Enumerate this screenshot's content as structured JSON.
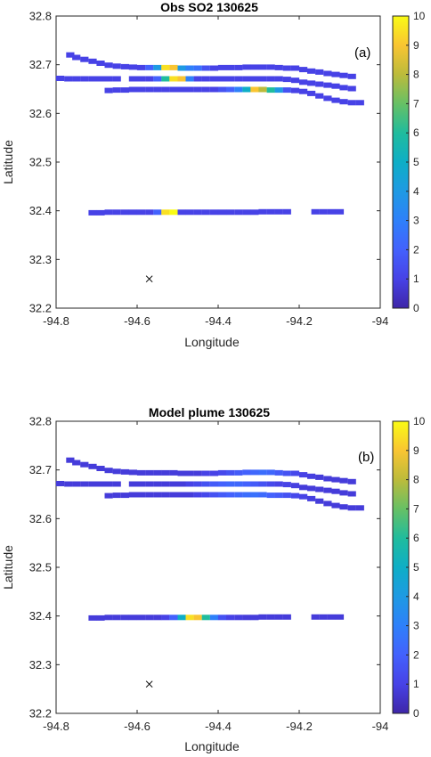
{
  "chart_data": [
    {
      "type": "scatter",
      "title": "Obs SO2 130625",
      "panel_label": "(a)",
      "xlabel": "Longitude",
      "ylabel": "Latitude",
      "xlim": [
        -94.8,
        -94.0
      ],
      "ylim": [
        32.2,
        32.8
      ],
      "xticks": [
        "-94.8",
        "-94.6",
        "-94.4",
        "-94.2",
        "-94"
      ],
      "yticks": [
        "32.2",
        "32.3",
        "32.4",
        "32.5",
        "32.6",
        "32.7",
        "32.8"
      ],
      "colorbar": {
        "min": 0,
        "max": 10,
        "ticks": [
          "0",
          "1",
          "2",
          "3",
          "4",
          "5",
          "6",
          "7",
          "8",
          "9",
          "10"
        ],
        "colormap": "parula"
      },
      "source_marker": {
        "x": -94.57,
        "y": 32.26,
        "symbol": "x"
      },
      "tracks": [
        {
          "lon": [
            -94.765,
            -94.75,
            -94.73,
            -94.71,
            -94.69,
            -94.67,
            -94.65,
            -94.63,
            -94.61,
            -94.59,
            -94.57,
            -94.55,
            -94.53,
            -94.51,
            -94.49,
            -94.47,
            -94.45,
            -94.43,
            -94.41,
            -94.39,
            -94.37,
            -94.35,
            -94.33,
            -94.31,
            -94.29,
            -94.27,
            -94.25,
            -94.23,
            -94.21,
            -94.19,
            -94.17,
            -94.15,
            -94.13,
            -94.11,
            -94.09,
            -94.07
          ],
          "lat": [
            32.72,
            32.715,
            32.711,
            32.707,
            32.703,
            32.699,
            32.697,
            32.696,
            32.695,
            32.694,
            32.694,
            32.694,
            32.694,
            32.694,
            32.693,
            32.693,
            32.693,
            32.693,
            32.693,
            32.694,
            32.694,
            32.694,
            32.695,
            32.695,
            32.695,
            32.695,
            32.694,
            32.693,
            32.693,
            32.69,
            32.687,
            32.685,
            32.682,
            32.68,
            32.678,
            32.676
          ],
          "val": [
            1,
            1,
            1,
            1,
            1,
            1,
            1,
            1,
            1,
            1,
            2,
            4,
            9.5,
            9,
            4,
            3,
            2.5,
            1.5,
            1,
            1,
            1,
            1,
            1,
            1,
            1,
            1,
            1,
            1,
            1,
            1,
            1,
            1,
            1,
            1,
            1,
            1
          ]
        },
        {
          "lon": [
            -94.79,
            -94.77,
            -94.75,
            -94.73,
            -94.71,
            -94.69,
            -94.67,
            -94.65,
            -94.63,
            -94.61,
            -94.59,
            -94.57,
            -94.55,
            -94.53,
            -94.51,
            -94.49,
            -94.47,
            -94.45,
            -94.43,
            -94.41,
            -94.39,
            -94.37,
            -94.35,
            -94.33,
            -94.31,
            -94.29,
            -94.27,
            -94.25,
            -94.23,
            -94.21,
            -94.19,
            -94.17,
            -94.15,
            -94.13,
            -94.11,
            -94.09,
            -94.07
          ],
          "lat": [
            32.672,
            32.671,
            32.671,
            32.671,
            32.671,
            32.671,
            32.671,
            32.671,
            null,
            32.671,
            32.671,
            32.671,
            32.671,
            32.671,
            32.671,
            32.671,
            32.671,
            32.671,
            32.671,
            32.671,
            32.671,
            32.671,
            32.671,
            32.671,
            32.671,
            32.671,
            32.671,
            32.671,
            32.67,
            32.668,
            32.664,
            32.662,
            32.66,
            32.658,
            32.656,
            32.653,
            32.651
          ],
          "val": [
            1,
            1,
            1,
            1,
            1,
            1,
            1,
            1,
            null,
            1,
            1,
            1,
            2,
            6,
            9.5,
            9,
            3,
            1,
            1,
            1,
            1,
            1,
            1,
            1,
            1,
            1,
            1,
            1,
            1,
            1,
            1,
            1,
            1,
            1,
            1,
            1,
            1
          ]
        },
        {
          "lon": [
            -94.67,
            -94.65,
            -94.63,
            -94.61,
            -94.59,
            -94.57,
            -94.55,
            -94.53,
            -94.51,
            -94.49,
            -94.47,
            -94.45,
            -94.43,
            -94.41,
            -94.39,
            -94.37,
            -94.35,
            -94.33,
            -94.31,
            -94.29,
            -94.27,
            -94.25,
            -94.23,
            -94.21,
            -94.19,
            -94.17,
            -94.15,
            -94.13,
            -94.11,
            -94.09,
            -94.07,
            -94.05
          ],
          "lat": [
            32.647,
            32.648,
            32.648,
            32.649,
            32.649,
            32.649,
            32.649,
            32.649,
            32.649,
            32.649,
            32.649,
            32.649,
            32.649,
            32.649,
            32.649,
            32.649,
            32.649,
            32.649,
            32.649,
            32.649,
            32.648,
            32.648,
            32.648,
            32.647,
            32.645,
            32.641,
            32.636,
            32.631,
            32.627,
            32.624,
            32.622,
            32.622
          ],
          "val": [
            1,
            1,
            1,
            1,
            1,
            1,
            1,
            1,
            1,
            1,
            1,
            1,
            1,
            1,
            1.5,
            2,
            3,
            5,
            9,
            8,
            6,
            4,
            1.5,
            1,
            1,
            1,
            1,
            1,
            1,
            1,
            1,
            1
          ]
        },
        {
          "lon": [
            -94.71,
            -94.69,
            -94.67,
            -94.65,
            -94.63,
            -94.61,
            -94.59,
            -94.57,
            -94.55,
            -94.53,
            -94.51,
            -94.49,
            -94.47,
            -94.45,
            -94.43,
            -94.41,
            -94.39,
            -94.37,
            -94.35,
            -94.33,
            -94.31,
            -94.29,
            -94.27,
            -94.25,
            -94.23,
            -94.16,
            -94.14,
            -94.12,
            -94.1
          ],
          "lat": [
            32.396,
            32.396,
            32.397,
            32.397,
            32.397,
            32.397,
            32.397,
            32.397,
            32.397,
            32.397,
            32.397,
            32.397,
            32.397,
            32.397,
            32.397,
            32.397,
            32.397,
            32.397,
            32.397,
            32.397,
            32.397,
            32.398,
            32.398,
            32.398,
            32.398,
            32.398,
            32.398,
            32.398,
            32.398
          ],
          "val": [
            1,
            1,
            1,
            1,
            1,
            1,
            1,
            1,
            2,
            9.5,
            10,
            1,
            1,
            1,
            1,
            1,
            1,
            1,
            1,
            1,
            1,
            1,
            1,
            1,
            1,
            1,
            1,
            1,
            1
          ]
        }
      ]
    },
    {
      "type": "scatter",
      "title": "Model plume 130625",
      "panel_label": "(b)",
      "xlabel": "Longitude",
      "ylabel": "Latitude",
      "xlim": [
        -94.8,
        -94.0
      ],
      "ylim": [
        32.2,
        32.8
      ],
      "xticks": [
        "-94.8",
        "-94.6",
        "-94.4",
        "-94.2",
        "-94"
      ],
      "yticks": [
        "32.2",
        "32.3",
        "32.4",
        "32.5",
        "32.6",
        "32.7",
        "32.8"
      ],
      "colorbar": {
        "min": 0,
        "max": 10,
        "ticks": [
          "0",
          "1",
          "2",
          "3",
          "4",
          "5",
          "6",
          "7",
          "8",
          "9",
          "10"
        ],
        "colormap": "parula"
      },
      "source_marker": {
        "x": -94.57,
        "y": 32.26,
        "symbol": "x"
      },
      "tracks": [
        {
          "lon": [
            -94.765,
            -94.75,
            -94.73,
            -94.71,
            -94.69,
            -94.67,
            -94.65,
            -94.63,
            -94.61,
            -94.59,
            -94.57,
            -94.55,
            -94.53,
            -94.51,
            -94.49,
            -94.47,
            -94.45,
            -94.43,
            -94.41,
            -94.39,
            -94.37,
            -94.35,
            -94.33,
            -94.31,
            -94.29,
            -94.27,
            -94.25,
            -94.23,
            -94.21,
            -94.19,
            -94.17,
            -94.15,
            -94.13,
            -94.11,
            -94.09,
            -94.07
          ],
          "lat": [
            32.72,
            32.715,
            32.711,
            32.707,
            32.703,
            32.699,
            32.697,
            32.696,
            32.695,
            32.694,
            32.694,
            32.694,
            32.694,
            32.694,
            32.693,
            32.693,
            32.693,
            32.693,
            32.693,
            32.694,
            32.694,
            32.694,
            32.695,
            32.695,
            32.695,
            32.695,
            32.694,
            32.693,
            32.693,
            32.69,
            32.687,
            32.685,
            32.682,
            32.68,
            32.678,
            32.676
          ],
          "val": [
            0.8,
            0.8,
            0.8,
            0.8,
            0.8,
            0.8,
            0.8,
            0.8,
            0.8,
            0.8,
            0.8,
            0.8,
            0.8,
            0.8,
            0.8,
            0.8,
            0.8,
            1,
            1,
            1.2,
            1.5,
            1.8,
            2,
            2.2,
            2.4,
            2.2,
            1.8,
            1.5,
            1.2,
            1,
            0.9,
            0.8,
            0.8,
            0.8,
            0.8,
            0.8
          ]
        },
        {
          "lon": [
            -94.79,
            -94.77,
            -94.75,
            -94.73,
            -94.71,
            -94.69,
            -94.67,
            -94.65,
            -94.63,
            -94.61,
            -94.59,
            -94.57,
            -94.55,
            -94.53,
            -94.51,
            -94.49,
            -94.47,
            -94.45,
            -94.43,
            -94.41,
            -94.39,
            -94.37,
            -94.35,
            -94.33,
            -94.31,
            -94.29,
            -94.27,
            -94.25,
            -94.23,
            -94.21,
            -94.19,
            -94.17,
            -94.15,
            -94.13,
            -94.11,
            -94.09,
            -94.07
          ],
          "lat": [
            32.672,
            32.671,
            32.671,
            32.671,
            32.671,
            32.671,
            32.671,
            32.671,
            null,
            32.671,
            32.671,
            32.671,
            32.671,
            32.671,
            32.671,
            32.671,
            32.671,
            32.671,
            32.671,
            32.671,
            32.671,
            32.671,
            32.671,
            32.671,
            32.671,
            32.671,
            32.671,
            32.671,
            32.67,
            32.668,
            32.664,
            32.662,
            32.66,
            32.658,
            32.656,
            32.653,
            32.651
          ],
          "val": [
            0.8,
            0.8,
            0.8,
            0.8,
            0.8,
            0.8,
            0.8,
            0.8,
            null,
            0.8,
            0.8,
            0.8,
            0.8,
            0.8,
            0.8,
            0.8,
            1,
            1.2,
            1.5,
            1.8,
            2,
            2.2,
            2.2,
            2,
            1.8,
            1.5,
            1.2,
            1,
            1,
            0.9,
            0.8,
            0.8,
            0.8,
            0.8,
            0.8,
            0.8,
            0.8
          ]
        },
        {
          "lon": [
            -94.67,
            -94.65,
            -94.63,
            -94.61,
            -94.59,
            -94.57,
            -94.55,
            -94.53,
            -94.51,
            -94.49,
            -94.47,
            -94.45,
            -94.43,
            -94.41,
            -94.39,
            -94.37,
            -94.35,
            -94.33,
            -94.31,
            -94.29,
            -94.27,
            -94.25,
            -94.23,
            -94.21,
            -94.19,
            -94.17,
            -94.15,
            -94.13,
            -94.11,
            -94.09,
            -94.07,
            -94.05
          ],
          "lat": [
            32.647,
            32.648,
            32.648,
            32.649,
            32.649,
            32.649,
            32.649,
            32.649,
            32.649,
            32.649,
            32.649,
            32.649,
            32.649,
            32.649,
            32.649,
            32.649,
            32.649,
            32.649,
            32.649,
            32.649,
            32.648,
            32.648,
            32.648,
            32.647,
            32.645,
            32.641,
            32.636,
            32.631,
            32.627,
            32.624,
            32.622,
            32.622
          ],
          "val": [
            0.8,
            0.8,
            0.8,
            0.8,
            0.8,
            0.8,
            0.8,
            0.8,
            0.8,
            0.8,
            0.8,
            1,
            1.2,
            1.5,
            1.8,
            2,
            2.2,
            2.4,
            2.5,
            2.3,
            2,
            1.8,
            1.5,
            1.2,
            1,
            0.9,
            0.8,
            0.8,
            0.8,
            0.8,
            0.8,
            0.8
          ]
        },
        {
          "lon": [
            -94.71,
            -94.69,
            -94.67,
            -94.65,
            -94.63,
            -94.61,
            -94.59,
            -94.57,
            -94.55,
            -94.53,
            -94.51,
            -94.49,
            -94.47,
            -94.45,
            -94.43,
            -94.41,
            -94.39,
            -94.37,
            -94.35,
            -94.33,
            -94.31,
            -94.29,
            -94.27,
            -94.25,
            -94.23,
            -94.16,
            -94.14,
            -94.12,
            -94.1
          ],
          "lat": [
            32.396,
            32.396,
            32.397,
            32.397,
            32.397,
            32.397,
            32.397,
            32.397,
            32.397,
            32.397,
            32.397,
            32.397,
            32.397,
            32.397,
            32.397,
            32.397,
            32.397,
            32.397,
            32.397,
            32.397,
            32.397,
            32.398,
            32.398,
            32.398,
            32.398,
            32.398,
            32.398,
            32.398,
            32.398
          ],
          "val": [
            0.8,
            0.8,
            0.8,
            0.8,
            0.8,
            0.8,
            0.8,
            0.8,
            0.8,
            1,
            2,
            5,
            9.5,
            9,
            6,
            3,
            1.5,
            1,
            0.9,
            0.8,
            0.8,
            0.8,
            0.8,
            0.8,
            0.8,
            0.8,
            0.8,
            0.8,
            0.8
          ]
        }
      ]
    }
  ]
}
